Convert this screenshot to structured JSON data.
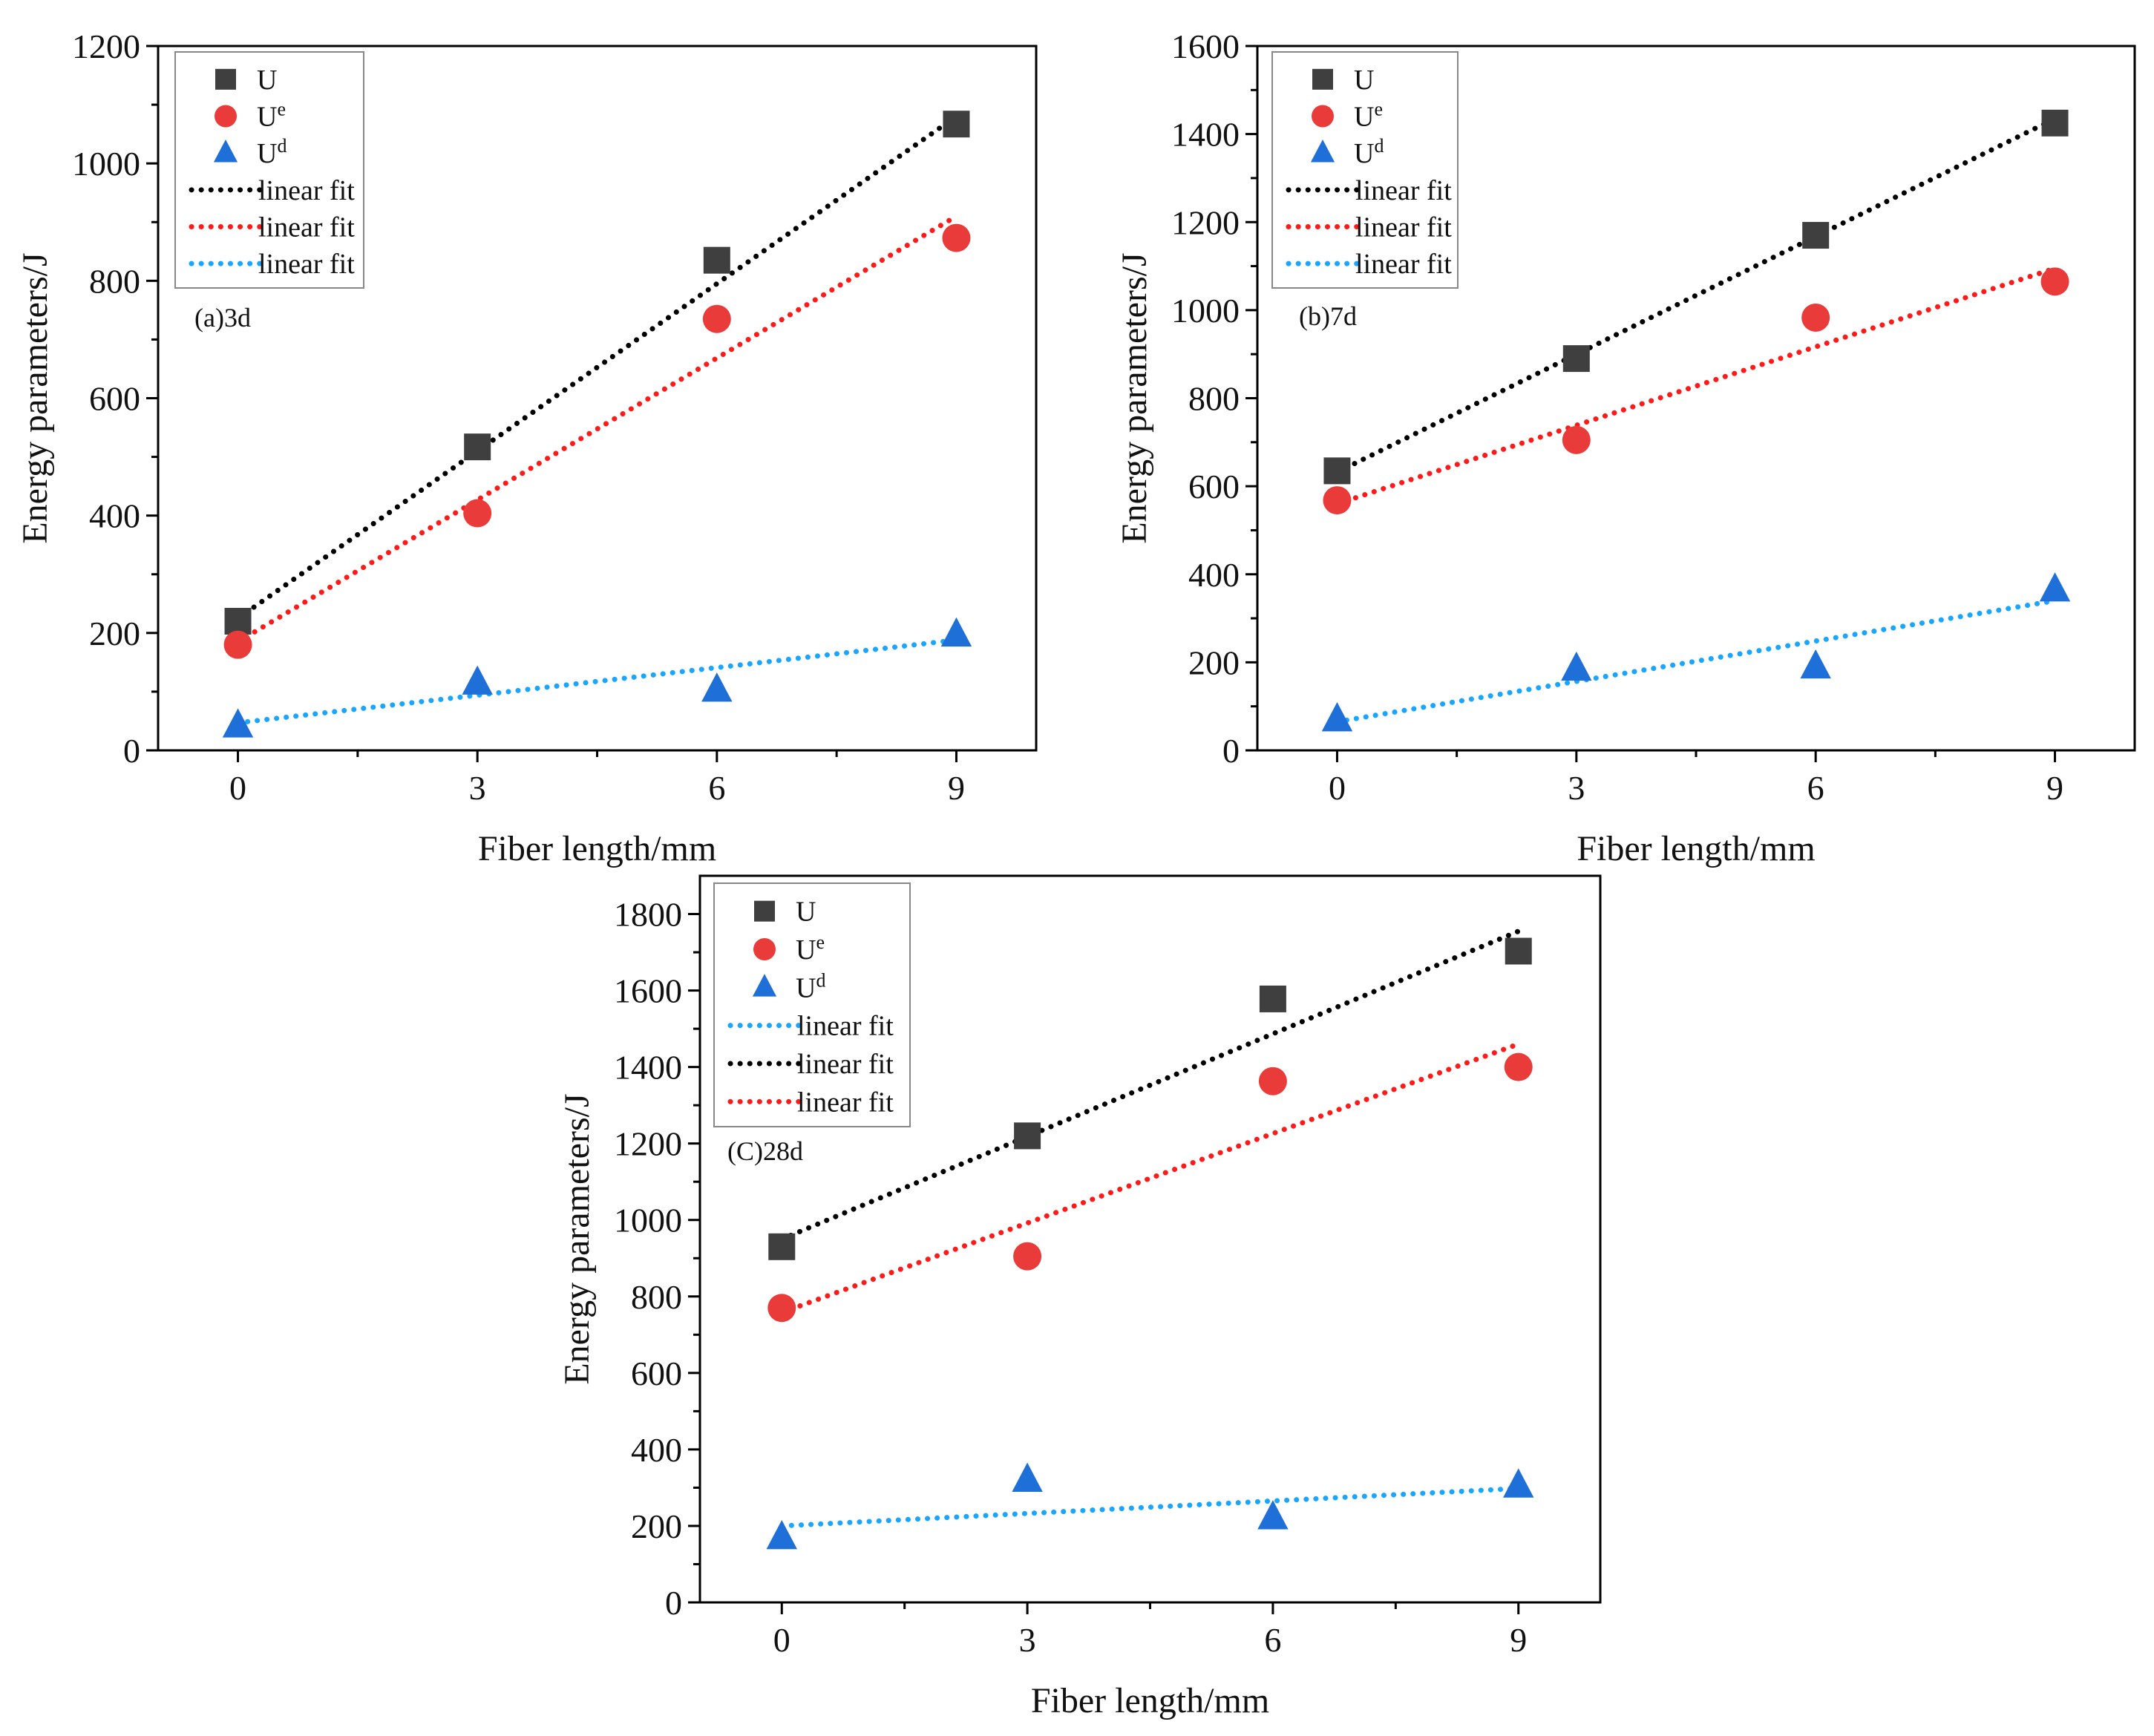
{
  "figure": {
    "colors": {
      "U": "#3f3f3f",
      "Ue": "#ea3b3b",
      "Ud": "#1f6fd8",
      "fit_U": "#000000",
      "fit_Ue": "#ff1a1a",
      "fit_Ud": "#1aa6ff",
      "axis": "#000000"
    }
  },
  "chart_data": [
    {
      "id": "a",
      "type": "scatter",
      "panel_label": "(a)3d",
      "xlabel": "Fiber length/mm",
      "ylabel": "Energy parameters/J",
      "x": [
        0,
        3,
        6,
        9
      ],
      "xticks": [
        0,
        3,
        6,
        9
      ],
      "xlim": [
        -1,
        10
      ],
      "ylim": [
        0,
        1200
      ],
      "yticks": [
        0,
        200,
        400,
        600,
        800,
        1000,
        1200
      ],
      "legend_position": "top-left",
      "series": [
        {
          "key": "U",
          "name": "U",
          "sup": "",
          "marker": "square",
          "values": [
            220,
            517,
            835,
            1067
          ]
        },
        {
          "key": "Ue",
          "name": "U",
          "sup": "e",
          "marker": "circle",
          "values": [
            180,
            404,
            735,
            873
          ]
        },
        {
          "key": "Ud",
          "name": "U",
          "sup": "d",
          "marker": "triangle",
          "values": [
            42,
            115,
            103,
            197
          ]
        }
      ],
      "fits": [
        {
          "key": "U",
          "name": "linear fit",
          "style": "dotted",
          "from": [
            0,
            225
          ],
          "to": [
            9,
            1080
          ]
        },
        {
          "key": "Ue",
          "name": "linear fit",
          "style": "dotted",
          "from": [
            0,
            185
          ],
          "to": [
            9,
            910
          ]
        },
        {
          "key": "Ud",
          "name": "linear fit",
          "style": "dotted",
          "from": [
            0,
            47
          ],
          "to": [
            9,
            188
          ]
        }
      ]
    },
    {
      "id": "b",
      "type": "scatter",
      "panel_label": "(b)7d",
      "xlabel": "Fiber length/mm",
      "ylabel": "Energy parameters/J",
      "x": [
        0,
        3,
        6,
        9
      ],
      "xticks": [
        0,
        3,
        6,
        9
      ],
      "xlim": [
        -1,
        10
      ],
      "ylim": [
        0,
        1600
      ],
      "yticks": [
        0,
        200,
        400,
        600,
        800,
        1000,
        1200,
        1400,
        1600
      ],
      "legend_position": "top-left",
      "series": [
        {
          "key": "U",
          "name": "U",
          "sup": "",
          "marker": "square",
          "values": [
            635,
            890,
            1170,
            1425
          ]
        },
        {
          "key": "Ue",
          "name": "U",
          "sup": "e",
          "marker": "circle",
          "values": [
            568,
            705,
            983,
            1065
          ]
        },
        {
          "key": "Ud",
          "name": "U",
          "sup": "d",
          "marker": "triangle",
          "values": [
            70,
            185,
            190,
            365
          ]
        }
      ],
      "fits": [
        {
          "key": "U",
          "name": "linear fit",
          "style": "dotted",
          "from": [
            0,
            632
          ],
          "to": [
            9,
            1435
          ]
        },
        {
          "key": "Ue",
          "name": "linear fit",
          "style": "dotted",
          "from": [
            0,
            560
          ],
          "to": [
            9,
            1095
          ]
        },
        {
          "key": "Ud",
          "name": "linear fit",
          "style": "dotted",
          "from": [
            0,
            65
          ],
          "to": [
            9,
            340
          ]
        }
      ]
    },
    {
      "id": "c",
      "type": "scatter",
      "panel_label": "(C)28d",
      "xlabel": "Fiber length/mm",
      "ylabel": "Energy parameters/J",
      "x": [
        0,
        3,
        6,
        9
      ],
      "xticks": [
        0,
        3,
        6,
        9
      ],
      "xlim": [
        -1,
        10
      ],
      "ylim": [
        0,
        1900
      ],
      "yticks": [
        0,
        200,
        400,
        600,
        800,
        1000,
        1200,
        1400,
        1600,
        1800
      ],
      "legend_position": "top-left",
      "series": [
        {
          "key": "U",
          "name": "U",
          "sup": "",
          "marker": "square",
          "values": [
            930,
            1220,
            1578,
            1703
          ]
        },
        {
          "key": "Ue",
          "name": "U",
          "sup": "e",
          "marker": "circle",
          "values": [
            770,
            905,
            1363,
            1400
          ]
        },
        {
          "key": "Ud",
          "name": "U",
          "sup": "d",
          "marker": "triangle",
          "values": [
            170,
            320,
            222,
            305
          ]
        }
      ],
      "fits": [
        {
          "key": "Ud",
          "name": "linear fit",
          "style": "dotted",
          "from": [
            0,
            200
          ],
          "to": [
            9,
            298
          ]
        },
        {
          "key": "U",
          "name": "linear fit",
          "style": "dotted",
          "from": [
            0,
            950
          ],
          "to": [
            9,
            1755
          ]
        },
        {
          "key": "Ue",
          "name": "linear fit",
          "style": "dotted",
          "from": [
            0,
            758
          ],
          "to": [
            9,
            1460
          ]
        }
      ]
    }
  ]
}
